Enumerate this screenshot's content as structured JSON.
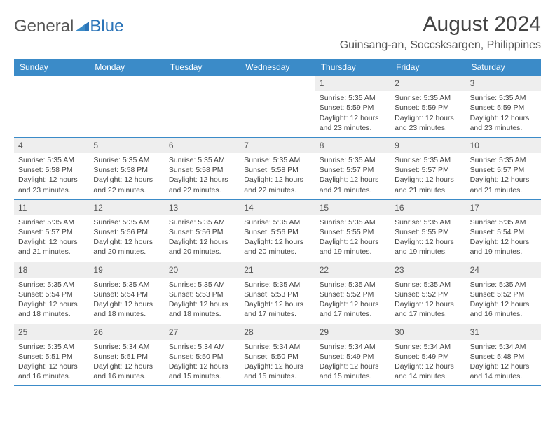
{
  "logo": {
    "part1": "General",
    "part2": "Blue"
  },
  "title": "August 2024",
  "location": "Guinsang-an, Soccsksargen, Philippines",
  "colors": {
    "header_bg": "#3b8bc8",
    "header_text": "#ffffff",
    "daynum_bg": "#eeeeee",
    "border": "#3b8bc8",
    "text": "#444444",
    "background": "#ffffff"
  },
  "day_headers": [
    "Sunday",
    "Monday",
    "Tuesday",
    "Wednesday",
    "Thursday",
    "Friday",
    "Saturday"
  ],
  "weeks": [
    [
      {
        "empty": true
      },
      {
        "empty": true
      },
      {
        "empty": true
      },
      {
        "empty": true
      },
      {
        "num": "1",
        "sunrise": "Sunrise: 5:35 AM",
        "sunset": "Sunset: 5:59 PM",
        "day1": "Daylight: 12 hours",
        "day2": "and 23 minutes."
      },
      {
        "num": "2",
        "sunrise": "Sunrise: 5:35 AM",
        "sunset": "Sunset: 5:59 PM",
        "day1": "Daylight: 12 hours",
        "day2": "and 23 minutes."
      },
      {
        "num": "3",
        "sunrise": "Sunrise: 5:35 AM",
        "sunset": "Sunset: 5:59 PM",
        "day1": "Daylight: 12 hours",
        "day2": "and 23 minutes."
      }
    ],
    [
      {
        "num": "4",
        "sunrise": "Sunrise: 5:35 AM",
        "sunset": "Sunset: 5:58 PM",
        "day1": "Daylight: 12 hours",
        "day2": "and 23 minutes."
      },
      {
        "num": "5",
        "sunrise": "Sunrise: 5:35 AM",
        "sunset": "Sunset: 5:58 PM",
        "day1": "Daylight: 12 hours",
        "day2": "and 22 minutes."
      },
      {
        "num": "6",
        "sunrise": "Sunrise: 5:35 AM",
        "sunset": "Sunset: 5:58 PM",
        "day1": "Daylight: 12 hours",
        "day2": "and 22 minutes."
      },
      {
        "num": "7",
        "sunrise": "Sunrise: 5:35 AM",
        "sunset": "Sunset: 5:58 PM",
        "day1": "Daylight: 12 hours",
        "day2": "and 22 minutes."
      },
      {
        "num": "8",
        "sunrise": "Sunrise: 5:35 AM",
        "sunset": "Sunset: 5:57 PM",
        "day1": "Daylight: 12 hours",
        "day2": "and 21 minutes."
      },
      {
        "num": "9",
        "sunrise": "Sunrise: 5:35 AM",
        "sunset": "Sunset: 5:57 PM",
        "day1": "Daylight: 12 hours",
        "day2": "and 21 minutes."
      },
      {
        "num": "10",
        "sunrise": "Sunrise: 5:35 AM",
        "sunset": "Sunset: 5:57 PM",
        "day1": "Daylight: 12 hours",
        "day2": "and 21 minutes."
      }
    ],
    [
      {
        "num": "11",
        "sunrise": "Sunrise: 5:35 AM",
        "sunset": "Sunset: 5:57 PM",
        "day1": "Daylight: 12 hours",
        "day2": "and 21 minutes."
      },
      {
        "num": "12",
        "sunrise": "Sunrise: 5:35 AM",
        "sunset": "Sunset: 5:56 PM",
        "day1": "Daylight: 12 hours",
        "day2": "and 20 minutes."
      },
      {
        "num": "13",
        "sunrise": "Sunrise: 5:35 AM",
        "sunset": "Sunset: 5:56 PM",
        "day1": "Daylight: 12 hours",
        "day2": "and 20 minutes."
      },
      {
        "num": "14",
        "sunrise": "Sunrise: 5:35 AM",
        "sunset": "Sunset: 5:56 PM",
        "day1": "Daylight: 12 hours",
        "day2": "and 20 minutes."
      },
      {
        "num": "15",
        "sunrise": "Sunrise: 5:35 AM",
        "sunset": "Sunset: 5:55 PM",
        "day1": "Daylight: 12 hours",
        "day2": "and 19 minutes."
      },
      {
        "num": "16",
        "sunrise": "Sunrise: 5:35 AM",
        "sunset": "Sunset: 5:55 PM",
        "day1": "Daylight: 12 hours",
        "day2": "and 19 minutes."
      },
      {
        "num": "17",
        "sunrise": "Sunrise: 5:35 AM",
        "sunset": "Sunset: 5:54 PM",
        "day1": "Daylight: 12 hours",
        "day2": "and 19 minutes."
      }
    ],
    [
      {
        "num": "18",
        "sunrise": "Sunrise: 5:35 AM",
        "sunset": "Sunset: 5:54 PM",
        "day1": "Daylight: 12 hours",
        "day2": "and 18 minutes."
      },
      {
        "num": "19",
        "sunrise": "Sunrise: 5:35 AM",
        "sunset": "Sunset: 5:54 PM",
        "day1": "Daylight: 12 hours",
        "day2": "and 18 minutes."
      },
      {
        "num": "20",
        "sunrise": "Sunrise: 5:35 AM",
        "sunset": "Sunset: 5:53 PM",
        "day1": "Daylight: 12 hours",
        "day2": "and 18 minutes."
      },
      {
        "num": "21",
        "sunrise": "Sunrise: 5:35 AM",
        "sunset": "Sunset: 5:53 PM",
        "day1": "Daylight: 12 hours",
        "day2": "and 17 minutes."
      },
      {
        "num": "22",
        "sunrise": "Sunrise: 5:35 AM",
        "sunset": "Sunset: 5:52 PM",
        "day1": "Daylight: 12 hours",
        "day2": "and 17 minutes."
      },
      {
        "num": "23",
        "sunrise": "Sunrise: 5:35 AM",
        "sunset": "Sunset: 5:52 PM",
        "day1": "Daylight: 12 hours",
        "day2": "and 17 minutes."
      },
      {
        "num": "24",
        "sunrise": "Sunrise: 5:35 AM",
        "sunset": "Sunset: 5:52 PM",
        "day1": "Daylight: 12 hours",
        "day2": "and 16 minutes."
      }
    ],
    [
      {
        "num": "25",
        "sunrise": "Sunrise: 5:35 AM",
        "sunset": "Sunset: 5:51 PM",
        "day1": "Daylight: 12 hours",
        "day2": "and 16 minutes."
      },
      {
        "num": "26",
        "sunrise": "Sunrise: 5:34 AM",
        "sunset": "Sunset: 5:51 PM",
        "day1": "Daylight: 12 hours",
        "day2": "and 16 minutes."
      },
      {
        "num": "27",
        "sunrise": "Sunrise: 5:34 AM",
        "sunset": "Sunset: 5:50 PM",
        "day1": "Daylight: 12 hours",
        "day2": "and 15 minutes."
      },
      {
        "num": "28",
        "sunrise": "Sunrise: 5:34 AM",
        "sunset": "Sunset: 5:50 PM",
        "day1": "Daylight: 12 hours",
        "day2": "and 15 minutes."
      },
      {
        "num": "29",
        "sunrise": "Sunrise: 5:34 AM",
        "sunset": "Sunset: 5:49 PM",
        "day1": "Daylight: 12 hours",
        "day2": "and 15 minutes."
      },
      {
        "num": "30",
        "sunrise": "Sunrise: 5:34 AM",
        "sunset": "Sunset: 5:49 PM",
        "day1": "Daylight: 12 hours",
        "day2": "and 14 minutes."
      },
      {
        "num": "31",
        "sunrise": "Sunrise: 5:34 AM",
        "sunset": "Sunset: 5:48 PM",
        "day1": "Daylight: 12 hours",
        "day2": "and 14 minutes."
      }
    ]
  ]
}
